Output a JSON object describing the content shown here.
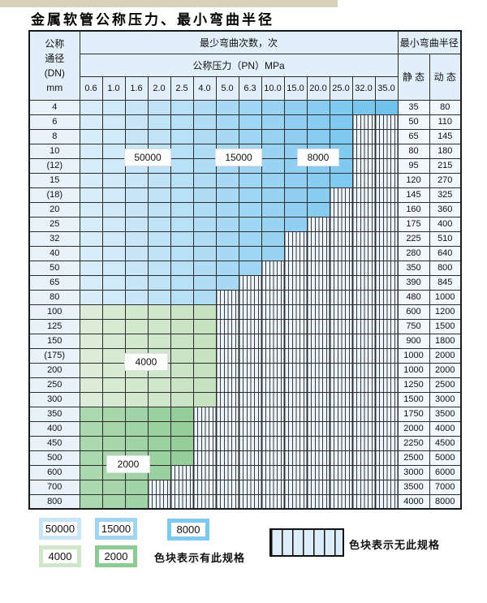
{
  "title": "金属软管公称压力、最小弯曲半径",
  "table": {
    "dn_header": "公称\n通径\n(DN)\nmm",
    "bend_cycles_header": "最少弯曲次数，次",
    "pressure_header": "公称压力（PN）MPa",
    "pressure_columns": [
      "0.6",
      "1.0",
      "1.6",
      "2.0",
      "2.5",
      "4.0",
      "5.0",
      "6.3",
      "10.0",
      "15.0",
      "20.0",
      "25.0",
      "32.0",
      "35.0"
    ],
    "radius_header": "最小弯曲半径",
    "static_header": "静 态",
    "dynamic_header": "动 态",
    "rows": [
      {
        "dn": "4",
        "colored_through": 13,
        "zone": "blue",
        "static": "35",
        "dynamic": "80"
      },
      {
        "dn": "6",
        "colored_through": 11,
        "zone": "blue",
        "static": "50",
        "dynamic": "110"
      },
      {
        "dn": "8",
        "colored_through": 11,
        "zone": "blue",
        "static": "65",
        "dynamic": "145"
      },
      {
        "dn": "10",
        "colored_through": 11,
        "zone": "blue",
        "static": "80",
        "dynamic": "180"
      },
      {
        "dn": "(12)",
        "colored_through": 11,
        "zone": "blue",
        "static": "95",
        "dynamic": "215"
      },
      {
        "dn": "15",
        "colored_through": 11,
        "zone": "blue",
        "static": "120",
        "dynamic": "270"
      },
      {
        "dn": "(18)",
        "colored_through": 10,
        "zone": "blue",
        "static": "145",
        "dynamic": "325"
      },
      {
        "dn": "20",
        "colored_through": 10,
        "zone": "blue",
        "static": "160",
        "dynamic": "360"
      },
      {
        "dn": "25",
        "colored_through": 9,
        "zone": "blue",
        "static": "175",
        "dynamic": "400"
      },
      {
        "dn": "32",
        "colored_through": 8,
        "zone": "blue",
        "static": "225",
        "dynamic": "510"
      },
      {
        "dn": "40",
        "colored_through": 8,
        "zone": "blue",
        "static": "280",
        "dynamic": "640"
      },
      {
        "dn": "50",
        "colored_through": 7,
        "zone": "blue",
        "static": "350",
        "dynamic": "800"
      },
      {
        "dn": "65",
        "colored_through": 6,
        "zone": "blue",
        "static": "390",
        "dynamic": "845"
      },
      {
        "dn": "80",
        "colored_through": 5,
        "zone": "blue",
        "static": "480",
        "dynamic": "1000"
      },
      {
        "dn": "100",
        "colored_through": 5,
        "zone": "g4",
        "static": "600",
        "dynamic": "1200"
      },
      {
        "dn": "125",
        "colored_through": 5,
        "zone": "g4",
        "static": "750",
        "dynamic": "1500"
      },
      {
        "dn": "150",
        "colored_through": 5,
        "zone": "g4",
        "static": "900",
        "dynamic": "1800"
      },
      {
        "dn": "(175)",
        "colored_through": 5,
        "zone": "g4",
        "static": "1000",
        "dynamic": "2000"
      },
      {
        "dn": "200",
        "colored_through": 5,
        "zone": "g4",
        "static": "1000",
        "dynamic": "2000"
      },
      {
        "dn": "250",
        "colored_through": 5,
        "zone": "g4",
        "static": "1250",
        "dynamic": "2500"
      },
      {
        "dn": "300",
        "colored_through": 5,
        "zone": "g4",
        "static": "1500",
        "dynamic": "3000"
      },
      {
        "dn": "350",
        "colored_through": 4,
        "zone": "g2",
        "static": "1750",
        "dynamic": "3500"
      },
      {
        "dn": "400",
        "colored_through": 4,
        "zone": "g2",
        "static": "2000",
        "dynamic": "4000"
      },
      {
        "dn": "450",
        "colored_through": 4,
        "zone": "g2",
        "static": "2250",
        "dynamic": "4500"
      },
      {
        "dn": "500",
        "colored_through": 4,
        "zone": "g2",
        "static": "2500",
        "dynamic": "5000"
      },
      {
        "dn": "600",
        "colored_through": 3,
        "zone": "g2",
        "static": "3000",
        "dynamic": "6000"
      },
      {
        "dn": "700",
        "colored_through": 2,
        "zone": "g2",
        "static": "3500",
        "dynamic": "7000"
      },
      {
        "dn": "800",
        "colored_through": 2,
        "zone": "g2",
        "static": "4000",
        "dynamic": "8000"
      }
    ]
  },
  "cycle_labels": [
    {
      "text": "50000"
    },
    {
      "text": "15000"
    },
    {
      "text": "8000"
    },
    {
      "text": "4000"
    },
    {
      "text": "2000"
    }
  ],
  "legend": {
    "items": [
      {
        "label": "50000",
        "color": "#c8e5f7"
      },
      {
        "label": "15000",
        "color": "#a0d5f2"
      },
      {
        "label": "8000",
        "color": "#7dc9ef"
      },
      {
        "label": "4000",
        "color": "#cfe6c9"
      },
      {
        "label": "2000",
        "color": "#8ccb93"
      }
    ],
    "has_spec_text": "色块表示有此规格",
    "no_spec_text": "色块表示无此规格"
  },
  "colors": {
    "blue_start": "#d8edfa",
    "blue_end": "#70c2ed",
    "green4000_start": "#ddecd8",
    "green4000_end": "#c6e2c0",
    "green2000_start": "#abd8ae",
    "green2000_end": "#95ce9b",
    "hatch_bg": "#ecf4fb",
    "top_strip": "#d8d2bc"
  }
}
